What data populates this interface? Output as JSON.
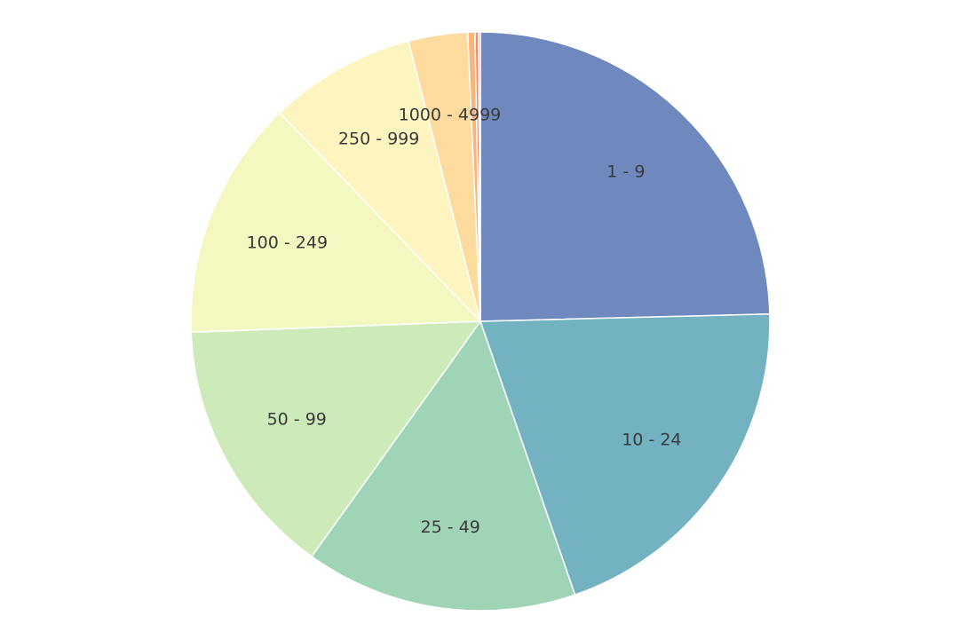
{
  "chart_data": {
    "type": "pie",
    "title": "",
    "legend": "none",
    "slices": [
      {
        "label": "1 - 9",
        "value": 24.6,
        "color": "#6f89bf"
      },
      {
        "label": "10 - 24",
        "value": 20.1,
        "color": "#72b2c1"
      },
      {
        "label": "25 - 49",
        "value": 15.2,
        "color": "#9fd5b6"
      },
      {
        "label": "50 - 99",
        "value": 14.5,
        "color": "#cdeab9"
      },
      {
        "label": "100 - 249",
        "value": 13.4,
        "color": "#f2f8c0"
      },
      {
        "label": "250 - 999",
        "value": 8.2,
        "color": "#fdf5bf"
      },
      {
        "label": "1000 - 4999",
        "value": 3.3,
        "color": "#fddb9e"
      },
      {
        "label": "",
        "value": 0.4,
        "color": "#f9b37d"
      },
      {
        "label": "",
        "value": 0.2,
        "color": "#f18e63"
      },
      {
        "label": "",
        "value": 0.1,
        "color": "#e1655b"
      }
    ]
  }
}
